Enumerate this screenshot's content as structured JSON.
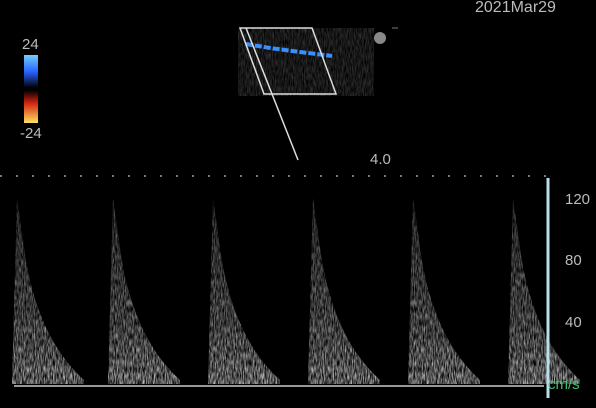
{
  "header": {
    "date": "2021Mar29"
  },
  "color_scale": {
    "max": "24",
    "min": "-24"
  },
  "depth": "4.0",
  "velocity_scale": {
    "ticks": [
      "120",
      "80",
      "40"
    ],
    "unit": "cm/s"
  }
}
